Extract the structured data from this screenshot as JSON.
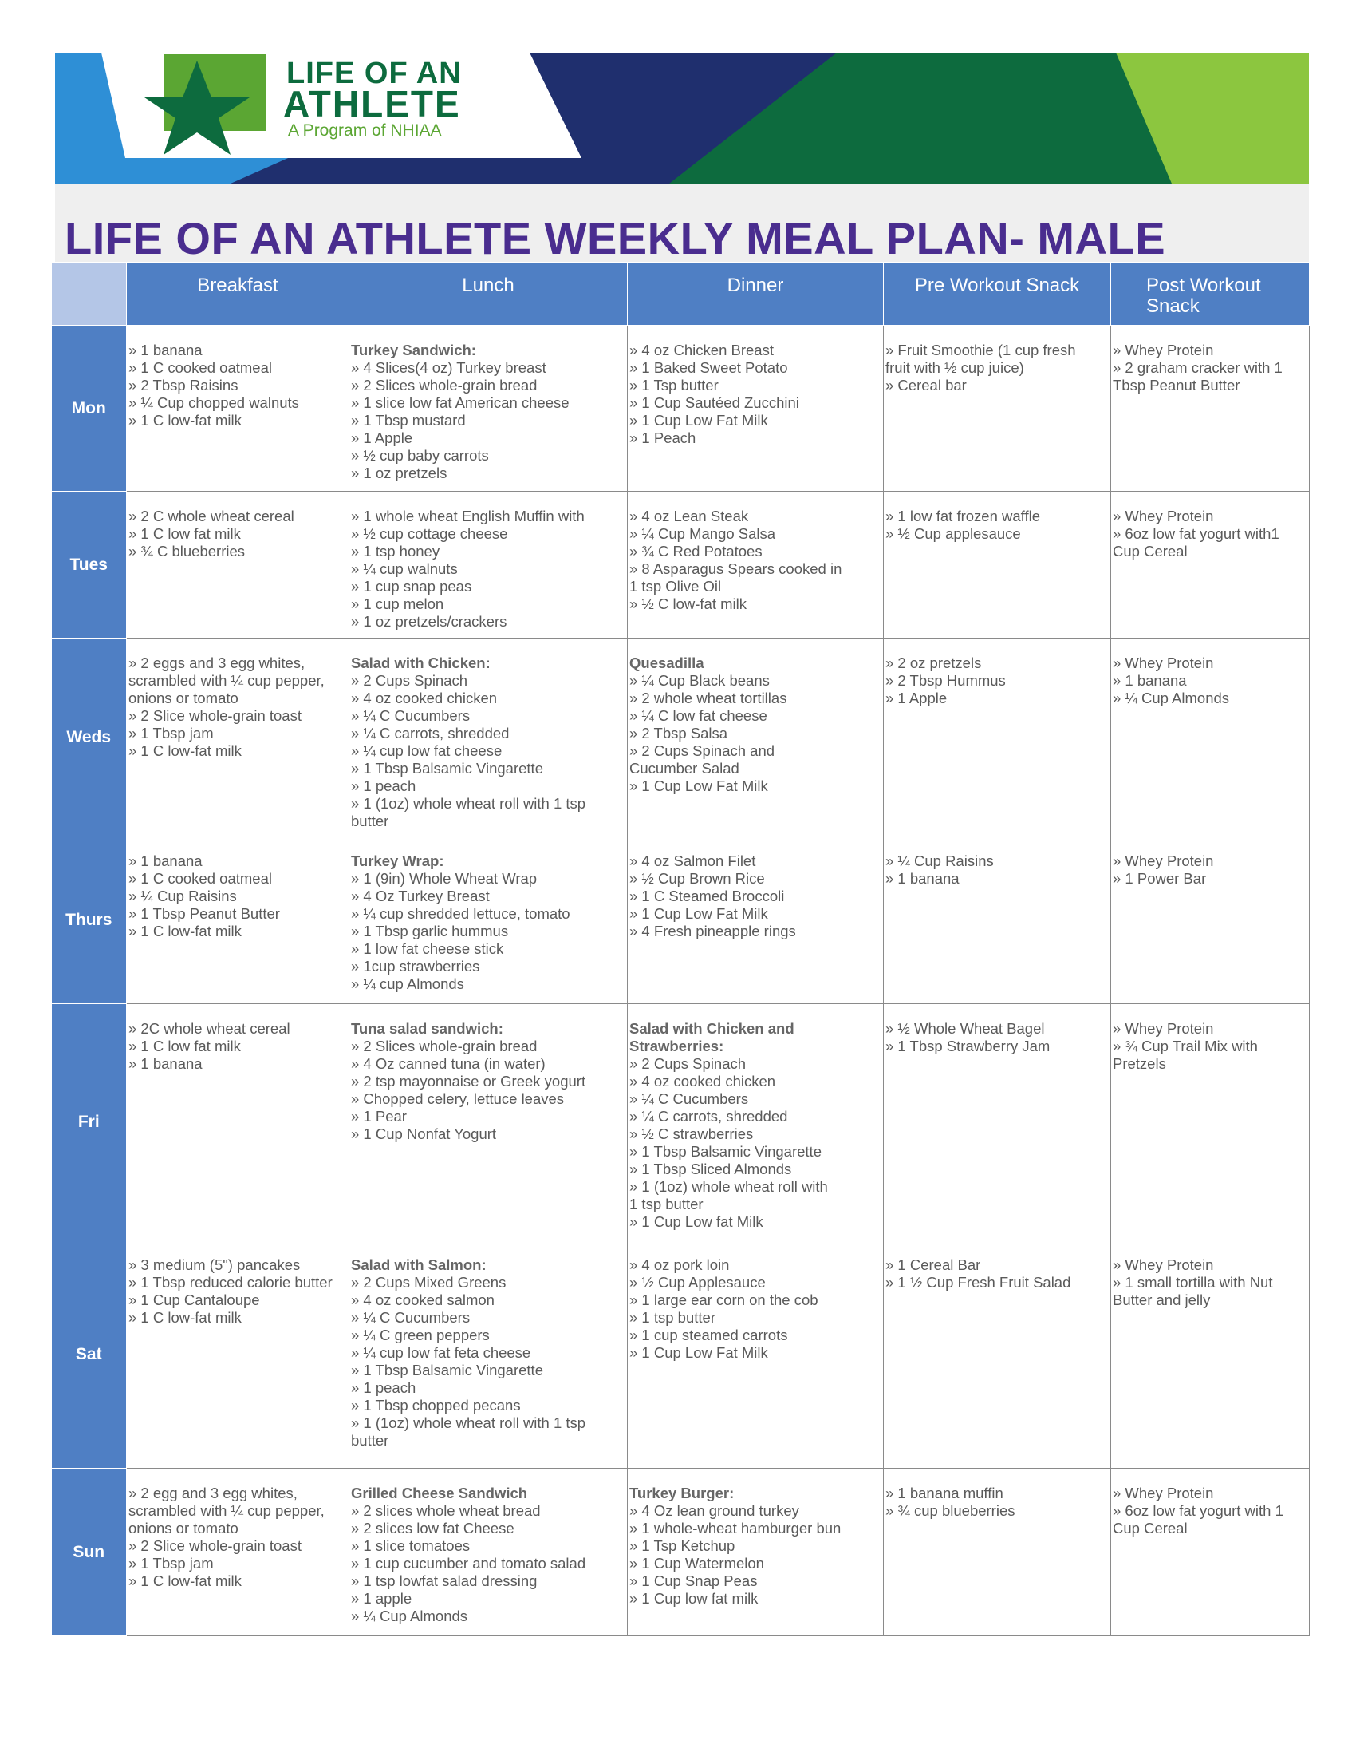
{
  "logo": {
    "line1": "LIFE OF AN",
    "line2": "ATHLETE",
    "tagline": "A Program of NHIAA",
    "colors": {
      "green": "#5ba633",
      "dark_green": "#0d6b3e",
      "navy": "#1f2f6e",
      "blue": "#2e8fd6",
      "lime": "#8cc63f"
    }
  },
  "title": "LIFE OF AN ATHLETE WEEKLY MEAL PLAN- MALE",
  "columns": [
    "Breakfast",
    "Lunch",
    "Dinner",
    "Pre Workout Snack",
    "Post Workout Snack"
  ],
  "days": [
    {
      "day": "Mon",
      "breakfast": [
        "» 1 banana",
        "» 1 C cooked oatmeal",
        "» 2 Tbsp Raisins",
        "» ¼ Cup chopped walnuts",
        "»  1 C low-fat milk"
      ],
      "lunch_title": "Turkey Sandwich:",
      "lunch": [
        "» 4 Slices(4 oz) Turkey breast",
        "» 2 Slices whole-grain bread",
        "» 1 slice low fat American cheese",
        "» 1 Tbsp mustard",
        "» 1 Apple",
        "»  ½ cup baby carrots",
        "»  1 oz pretzels"
      ],
      "dinner_title": "",
      "dinner": [
        "» 4 oz Chicken Breast",
        "»  1 Baked Sweet Potato",
        "» 1 Tsp butter",
        "» 1 Cup Sautéed Zucchini",
        "» 1 Cup Low Fat Milk",
        "» 1 Peach"
      ],
      "pre": [
        "»  Fruit Smoothie (1 cup fresh",
        "fruit with ½ cup juice)",
        "» Cereal bar"
      ],
      "post": [
        "» Whey Protein",
        "» 2 graham cracker with 1",
        "Tbsp Peanut Butter"
      ]
    },
    {
      "day": "Tues",
      "breakfast": [
        "» 2 C whole wheat cereal",
        "» 1 C low fat milk",
        "» ¾ C blueberries"
      ],
      "lunch_title": "",
      "lunch": [
        "» 1 whole wheat English Muffin with",
        "» ½ cup cottage cheese",
        "» 1 tsp honey",
        "» ¼ cup walnuts",
        "» 1 cup snap peas",
        "» 1 cup melon",
        "» 1 oz pretzels/crackers"
      ],
      "dinner_title": "",
      "dinner": [
        "» 4 oz Lean Steak",
        "» ¼ Cup Mango Salsa",
        "» ¾ C Red Potatoes",
        "» 8 Asparagus Spears cooked in",
        "1 tsp Olive Oil",
        "» ½ C low-fat milk"
      ],
      "pre": [
        "» 1 low fat frozen waffle",
        "» ½ Cup applesauce"
      ],
      "post": [
        "» Whey Protein",
        "» 6oz low fat yogurt with1",
        "Cup Cereal"
      ]
    },
    {
      "day": "Weds",
      "breakfast": [
        "» 2 eggs and 3 egg whites,",
        "scrambled with ¼ cup pepper,",
        "onions or tomato",
        "» 2 Slice whole-grain toast",
        "» 1 Tbsp jam",
        "» 1 C low-fat milk"
      ],
      "lunch_title": "Salad with Chicken:",
      "lunch": [
        "» 2 Cups Spinach",
        "» 4 oz cooked chicken",
        "» ¼ C Cucumbers",
        "» ¼ C carrots, shredded",
        "» ¼ cup low fat cheese",
        "» 1 Tbsp Balsamic Vingarette",
        "» 1 peach",
        "» 1 (1oz) whole wheat roll with 1 tsp",
        " butter"
      ],
      "dinner_title": "Quesadilla",
      "dinner": [
        "» ¼ Cup Black beans",
        "» 2 whole wheat tortillas",
        "» ¼ C low fat cheese",
        "» 2 Tbsp Salsa",
        "» 2 Cups Spinach and",
        "Cucumber Salad",
        "» 1 Cup Low Fat Milk"
      ],
      "pre": [
        "» 2 oz pretzels",
        "» 2 Tbsp Hummus",
        "» 1 Apple"
      ],
      "post": [
        "» Whey Protein",
        "» 1 banana",
        "» ¼ Cup Almonds"
      ]
    },
    {
      "day": "Thurs",
      "breakfast": [
        "» 1 banana",
        "» 1 C cooked oatmeal",
        "» ¼ Cup Raisins",
        "» 1 Tbsp Peanut Butter",
        "» 1 C low-fat milk"
      ],
      "lunch_title": "Turkey Wrap:",
      "lunch": [
        "» 1 (9in) Whole Wheat Wrap",
        "» 4 Oz Turkey Breast",
        "» ¼ cup shredded lettuce, tomato",
        "» 1 Tbsp garlic hummus",
        "» 1 low fat cheese stick",
        "» 1cup strawberries",
        "» ¼ cup Almonds"
      ],
      "dinner_title": "",
      "dinner": [
        "» 4 oz Salmon Filet",
        "» ½ Cup Brown Rice",
        "» 1 C Steamed Broccoli",
        "» 1 Cup Low Fat Milk",
        "» 4 Fresh pineapple rings"
      ],
      "pre": [
        "» ¼ Cup Raisins",
        "» 1 banana"
      ],
      "post": [
        "» Whey Protein",
        "» 1 Power Bar"
      ]
    },
    {
      "day": "Fri",
      "breakfast": [
        "» 2C whole wheat cereal",
        "» 1 C low fat milk",
        "» 1 banana"
      ],
      "lunch_title": "Tuna salad sandwich:",
      "lunch": [
        "» 2 Slices whole-grain bread",
        "» 4 Oz canned tuna (in water)",
        "» 2 tsp mayonnaise  or Greek yogurt",
        "» Chopped celery, lettuce leaves",
        "» 1 Pear",
        "» 1 Cup Nonfat Yogurt"
      ],
      "dinner_title": "Salad with Chicken and Strawberries:",
      "dinner": [
        "» 2 Cups Spinach",
        "» 4 oz cooked chicken",
        "» ¼ C Cucumbers",
        "» ¼ C carrots, shredded",
        "» ½ C strawberries",
        "» 1 Tbsp Balsamic Vingarette",
        "» 1 Tbsp Sliced Almonds",
        "» 1 (1oz) whole wheat roll with",
        "1 tsp butter",
        "» 1 Cup Low fat Milk"
      ],
      "pre": [
        "» ½ Whole Wheat Bagel",
        "» 1 Tbsp Strawberry Jam"
      ],
      "post": [
        "» Whey Protein",
        "» ¾ Cup Trail Mix with",
        "Pretzels"
      ]
    },
    {
      "day": "Sat",
      "breakfast": [
        "» 3 medium (5\") pancakes",
        "» 1 Tbsp reduced calorie butter",
        "» 1 Cup Cantaloupe",
        "» 1 C low-fat milk"
      ],
      "lunch_title": "Salad with Salmon:",
      "lunch": [
        "» 2 Cups Mixed Greens",
        "» 4 oz cooked salmon",
        "» ¼ C Cucumbers",
        "» ¼ C green peppers",
        "» ¼ cup low fat feta cheese",
        "» 1 Tbsp Balsamic Vingarette",
        "» 1 peach",
        "» 1 Tbsp chopped pecans",
        "» 1 (1oz) whole wheat roll with 1 tsp",
        "butter"
      ],
      "dinner_title": "",
      "dinner": [
        "» 4 oz pork loin",
        "»  ½ Cup Applesauce",
        "» 1 large  ear corn on the cob",
        "» 1 tsp butter",
        "» 1 cup steamed carrots",
        "» 1 Cup Low Fat Milk"
      ],
      "pre": [
        "» 1 Cereal Bar",
        "» 1 ½  Cup Fresh Fruit Salad"
      ],
      "post": [
        "» Whey Protein",
        "» 1 small tortilla with Nut",
        "Butter and jelly"
      ]
    },
    {
      "day": "Sun",
      "breakfast": [
        "» 2 egg and 3 egg whites,",
        "scrambled with ¼ cup pepper,",
        "onions or tomato",
        "» 2 Slice whole-grain toast",
        "» 1 Tbsp jam",
        "» 1 C low-fat milk"
      ],
      "lunch_title": "Grilled Cheese Sandwich",
      "lunch": [
        "» 2 slices whole wheat bread",
        "» 2 slices low fat Cheese",
        "» 1 slice tomatoes",
        "» 1 cup cucumber and tomato salad",
        "» 1 tsp lowfat salad dressing",
        "» 1 apple",
        "» ¼ Cup Almonds"
      ],
      "dinner_title": "Turkey Burger:",
      "dinner": [
        "» 4 Oz lean ground turkey",
        "» 1 whole-wheat hamburger bun",
        "» 1 Tsp Ketchup",
        "» 1 Cup Watermelon",
        "» 1 Cup Snap Peas",
        "» 1 Cup low fat milk"
      ],
      "pre": [
        "» 1 banana muffin",
        "»  ¾  cup blueberries"
      ],
      "post": [
        "» Whey Protein",
        "» 6oz low fat yogurt with 1",
        "Cup Cereal"
      ]
    }
  ]
}
